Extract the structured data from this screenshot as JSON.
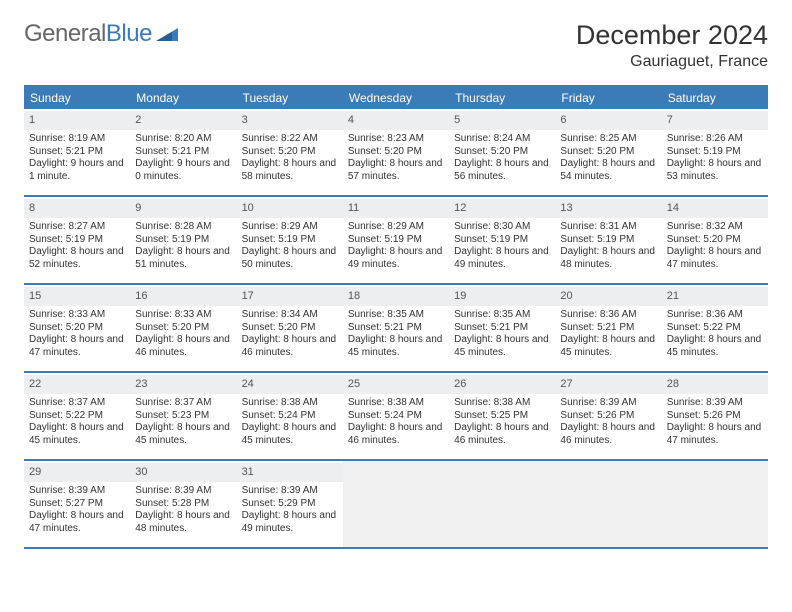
{
  "brand": {
    "part1": "General",
    "part2": "Blue"
  },
  "title": "December 2024",
  "location": "Gauriaguet, France",
  "colors": {
    "brand_blue": "#3b7cb8",
    "header_bg": "#3b7cb8",
    "row_divider": "#3b7cb8",
    "daynum_bg": "#eceeef",
    "empty_bg": "#f0f0f0",
    "text": "#333333",
    "logo_gray": "#666666"
  },
  "weekdays": [
    "Sunday",
    "Monday",
    "Tuesday",
    "Wednesday",
    "Thursday",
    "Friday",
    "Saturday"
  ],
  "days": [
    {
      "n": 1,
      "sunrise": "8:19 AM",
      "sunset": "5:21 PM",
      "daylight": "9 hours and 1 minute."
    },
    {
      "n": 2,
      "sunrise": "8:20 AM",
      "sunset": "5:21 PM",
      "daylight": "9 hours and 0 minutes."
    },
    {
      "n": 3,
      "sunrise": "8:22 AM",
      "sunset": "5:20 PM",
      "daylight": "8 hours and 58 minutes."
    },
    {
      "n": 4,
      "sunrise": "8:23 AM",
      "sunset": "5:20 PM",
      "daylight": "8 hours and 57 minutes."
    },
    {
      "n": 5,
      "sunrise": "8:24 AM",
      "sunset": "5:20 PM",
      "daylight": "8 hours and 56 minutes."
    },
    {
      "n": 6,
      "sunrise": "8:25 AM",
      "sunset": "5:20 PM",
      "daylight": "8 hours and 54 minutes."
    },
    {
      "n": 7,
      "sunrise": "8:26 AM",
      "sunset": "5:19 PM",
      "daylight": "8 hours and 53 minutes."
    },
    {
      "n": 8,
      "sunrise": "8:27 AM",
      "sunset": "5:19 PM",
      "daylight": "8 hours and 52 minutes."
    },
    {
      "n": 9,
      "sunrise": "8:28 AM",
      "sunset": "5:19 PM",
      "daylight": "8 hours and 51 minutes."
    },
    {
      "n": 10,
      "sunrise": "8:29 AM",
      "sunset": "5:19 PM",
      "daylight": "8 hours and 50 minutes."
    },
    {
      "n": 11,
      "sunrise": "8:29 AM",
      "sunset": "5:19 PM",
      "daylight": "8 hours and 49 minutes."
    },
    {
      "n": 12,
      "sunrise": "8:30 AM",
      "sunset": "5:19 PM",
      "daylight": "8 hours and 49 minutes."
    },
    {
      "n": 13,
      "sunrise": "8:31 AM",
      "sunset": "5:19 PM",
      "daylight": "8 hours and 48 minutes."
    },
    {
      "n": 14,
      "sunrise": "8:32 AM",
      "sunset": "5:20 PM",
      "daylight": "8 hours and 47 minutes."
    },
    {
      "n": 15,
      "sunrise": "8:33 AM",
      "sunset": "5:20 PM",
      "daylight": "8 hours and 47 minutes."
    },
    {
      "n": 16,
      "sunrise": "8:33 AM",
      "sunset": "5:20 PM",
      "daylight": "8 hours and 46 minutes."
    },
    {
      "n": 17,
      "sunrise": "8:34 AM",
      "sunset": "5:20 PM",
      "daylight": "8 hours and 46 minutes."
    },
    {
      "n": 18,
      "sunrise": "8:35 AM",
      "sunset": "5:21 PM",
      "daylight": "8 hours and 45 minutes."
    },
    {
      "n": 19,
      "sunrise": "8:35 AM",
      "sunset": "5:21 PM",
      "daylight": "8 hours and 45 minutes."
    },
    {
      "n": 20,
      "sunrise": "8:36 AM",
      "sunset": "5:21 PM",
      "daylight": "8 hours and 45 minutes."
    },
    {
      "n": 21,
      "sunrise": "8:36 AM",
      "sunset": "5:22 PM",
      "daylight": "8 hours and 45 minutes."
    },
    {
      "n": 22,
      "sunrise": "8:37 AM",
      "sunset": "5:22 PM",
      "daylight": "8 hours and 45 minutes."
    },
    {
      "n": 23,
      "sunrise": "8:37 AM",
      "sunset": "5:23 PM",
      "daylight": "8 hours and 45 minutes."
    },
    {
      "n": 24,
      "sunrise": "8:38 AM",
      "sunset": "5:24 PM",
      "daylight": "8 hours and 45 minutes."
    },
    {
      "n": 25,
      "sunrise": "8:38 AM",
      "sunset": "5:24 PM",
      "daylight": "8 hours and 46 minutes."
    },
    {
      "n": 26,
      "sunrise": "8:38 AM",
      "sunset": "5:25 PM",
      "daylight": "8 hours and 46 minutes."
    },
    {
      "n": 27,
      "sunrise": "8:39 AM",
      "sunset": "5:26 PM",
      "daylight": "8 hours and 46 minutes."
    },
    {
      "n": 28,
      "sunrise": "8:39 AM",
      "sunset": "5:26 PM",
      "daylight": "8 hours and 47 minutes."
    },
    {
      "n": 29,
      "sunrise": "8:39 AM",
      "sunset": "5:27 PM",
      "daylight": "8 hours and 47 minutes."
    },
    {
      "n": 30,
      "sunrise": "8:39 AM",
      "sunset": "5:28 PM",
      "daylight": "8 hours and 48 minutes."
    },
    {
      "n": 31,
      "sunrise": "8:39 AM",
      "sunset": "5:29 PM",
      "daylight": "8 hours and 49 minutes."
    }
  ],
  "labels": {
    "sunrise": "Sunrise:",
    "sunset": "Sunset:",
    "daylight": "Daylight:"
  },
  "layout": {
    "first_day_offset": 0,
    "columns": 7,
    "rows": 5
  }
}
